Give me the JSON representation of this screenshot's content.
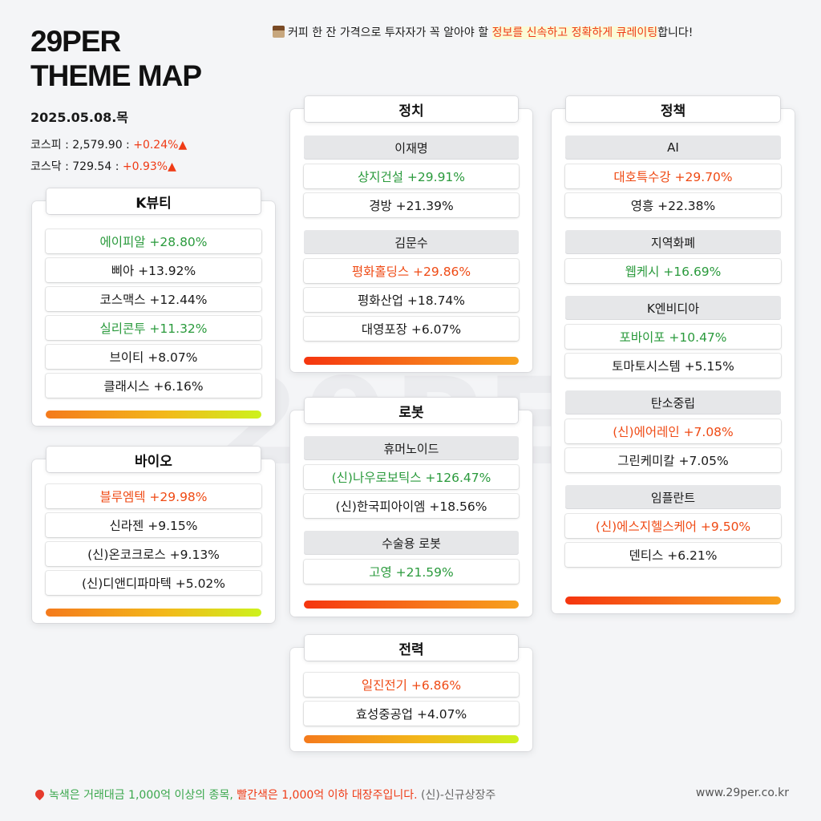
{
  "brand": {
    "line1": "29PER",
    "line2": "THEME MAP"
  },
  "watermark": "29PER",
  "date": "2025.05.08.목",
  "indices": [
    {
      "label": "코스피 : 2,579.90 : ",
      "change": "+0.24%",
      "arrow": "▲"
    },
    {
      "label": "코스닥 : 729.54 : ",
      "change": "+0.93%",
      "arrow": "▲"
    }
  ],
  "tagline": {
    "plain": "커피 한 잔 가격으로 투자자가 꼭 알아야 할 ",
    "highlight": "정보를 신속하고 정확하게 큐레이팅",
    "end": "합니다!"
  },
  "cards": {
    "kbeauty": {
      "title": "K뷰티",
      "stocks": [
        {
          "name": "에이피알 +28.80%",
          "color": "green"
        },
        {
          "name": "삐아 +13.92%",
          "color": "black"
        },
        {
          "name": "코스맥스 +12.44%",
          "color": "black"
        },
        {
          "name": "실리콘투 +11.32%",
          "color": "green"
        },
        {
          "name": "브이티 +8.07%",
          "color": "black"
        },
        {
          "name": "클래시스 +6.16%",
          "color": "black"
        }
      ]
    },
    "bio": {
      "title": "바이오",
      "stocks": [
        {
          "name": "블루엠텍 +29.98%",
          "color": "red"
        },
        {
          "name": "신라젠 +9.15%",
          "color": "black"
        },
        {
          "name": "(신)온코크로스 +9.13%",
          "color": "black"
        },
        {
          "name": "(신)디앤디파마텍  +5.02%",
          "color": "black"
        }
      ]
    },
    "politics": {
      "title": "정치",
      "groups": [
        {
          "subhead": "이재명",
          "stocks": [
            {
              "name": "상지건설 +29.91%",
              "color": "green"
            },
            {
              "name": "경방 +21.39%",
              "color": "black"
            }
          ]
        },
        {
          "subhead": "김문수",
          "stocks": [
            {
              "name": "평화홀딩스 +29.86%",
              "color": "red"
            },
            {
              "name": "평화산업 +18.74%",
              "color": "black"
            },
            {
              "name": "대영포장 +6.07%",
              "color": "black"
            }
          ]
        }
      ]
    },
    "robot": {
      "title": "로봇",
      "groups": [
        {
          "subhead": "휴머노이드",
          "stocks": [
            {
              "name": "(신)나우로보틱스 +126.47%",
              "color": "green"
            },
            {
              "name": "(신)한국피아이엠 +18.56%",
              "color": "black"
            }
          ]
        },
        {
          "subhead": "수술용 로봇",
          "stocks": [
            {
              "name": "고영 +21.59%",
              "color": "green"
            }
          ]
        }
      ]
    },
    "power": {
      "title": "전력",
      "stocks": [
        {
          "name": "일진전기 +6.86%",
          "color": "red"
        },
        {
          "name": "효성중공업 +4.07%",
          "color": "black"
        }
      ]
    },
    "policy": {
      "title": "정책",
      "groups": [
        {
          "subhead": "AI",
          "stocks": [
            {
              "name": "대호특수강 +29.70%",
              "color": "red"
            },
            {
              "name": "영흥 +22.38%",
              "color": "black"
            }
          ]
        },
        {
          "subhead": "지역화폐",
          "stocks": [
            {
              "name": "웹케시 +16.69%",
              "color": "green"
            }
          ]
        },
        {
          "subhead": "K엔비디아",
          "stocks": [
            {
              "name": "포바이포 +10.47%",
              "color": "green"
            },
            {
              "name": "토마토시스템 +5.15%",
              "color": "black"
            }
          ]
        },
        {
          "subhead": "탄소중립",
          "stocks": [
            {
              "name": "(신)에어레인 +7.08%",
              "color": "red"
            },
            {
              "name": "그린케미칼 +7.05%",
              "color": "black"
            }
          ]
        },
        {
          "subhead": "임플란트",
          "stocks": [
            {
              "name": "(신)에스지헬스케어 +9.50%",
              "color": "red"
            },
            {
              "name": "덴티스 +6.21%",
              "color": "black"
            }
          ]
        }
      ]
    }
  },
  "footer": {
    "green_text": "녹색은 거래대금 1,000억 이상의 종목, ",
    "red_text": "빨간색은 1,000억 이하 대장주입니다. ",
    "muted_text": "(신)-신규상장주",
    "site": "www.29per.co.kr"
  },
  "colors": {
    "green": "#2a9a3c",
    "red": "#ef4a14",
    "background": "#f4f5f7"
  }
}
